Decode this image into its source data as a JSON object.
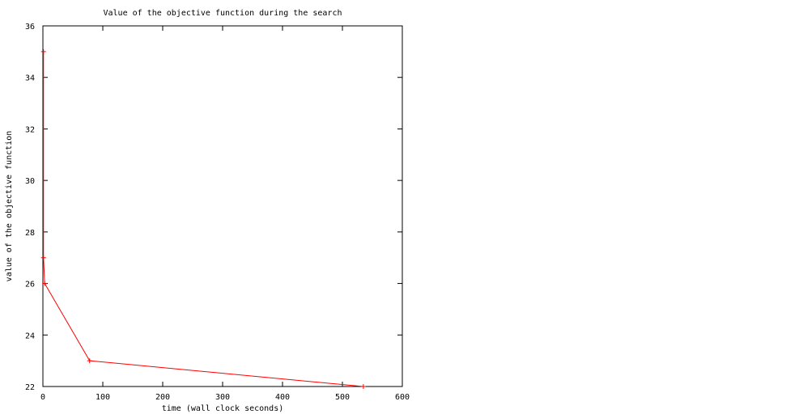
{
  "chart_data": {
    "type": "line",
    "title": "Value of the objective function during the search",
    "xlabel": "time (wall clock seconds)",
    "ylabel": "value of the objective function",
    "xlim": [
      0,
      600
    ],
    "ylim": [
      22,
      36
    ],
    "xticks": [
      0,
      100,
      200,
      300,
      400,
      500,
      600
    ],
    "yticks": [
      22,
      24,
      26,
      28,
      30,
      32,
      34,
      36
    ],
    "grid": false,
    "legend": "none",
    "series": [
      {
        "color": "#ff0000",
        "marker": "plus",
        "points": [
          [
            1,
            35
          ],
          [
            1,
            27
          ],
          [
            3,
            26
          ],
          [
            78,
            23
          ],
          [
            535,
            22
          ]
        ]
      }
    ]
  }
}
